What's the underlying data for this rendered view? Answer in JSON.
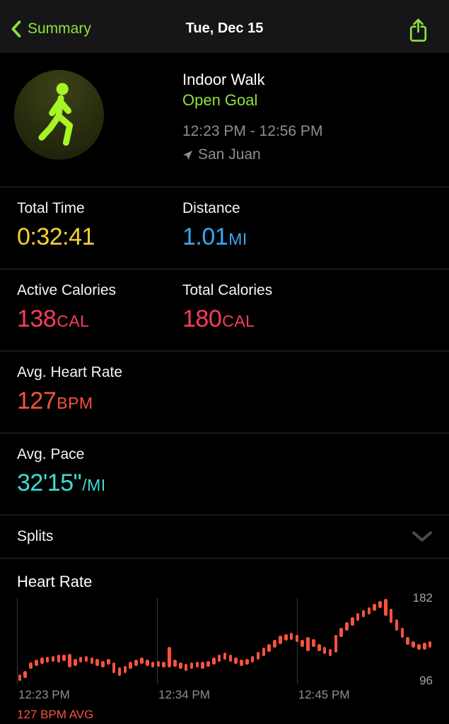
{
  "header": {
    "back_label": "Summary",
    "title": "Tue, Dec 15"
  },
  "icons": {
    "back": "chevron-left",
    "share": "share-square-arrow-up",
    "workout": "walking-person",
    "location": "navigation-arrow",
    "splits": "chevron-down"
  },
  "colors": {
    "green": "#8de33c",
    "lime": "#a6f426",
    "yellow": "#f6d32e",
    "blue": "#3aa7f4",
    "pink": "#fa3c5f",
    "red": "#f8523e",
    "cyan": "#40dcd4",
    "gray": "#8e8e93"
  },
  "workout": {
    "type": "Indoor Walk",
    "goal": "Open Goal",
    "time_range": "12:23 PM - 12:56 PM",
    "location": "San Juan"
  },
  "metrics": {
    "total_time": {
      "label": "Total Time",
      "value": "0:32:41",
      "unit": "",
      "color": "#f6d32e"
    },
    "distance": {
      "label": "Distance",
      "value": "1.01",
      "unit": "MI",
      "color": "#3aa7f4"
    },
    "active_calories": {
      "label": "Active Calories",
      "value": "138",
      "unit": "CAL",
      "color": "#fa3c5f"
    },
    "total_calories": {
      "label": "Total Calories",
      "value": "180",
      "unit": "CAL",
      "color": "#fa3c5f"
    },
    "avg_heart_rate": {
      "label": "Avg. Heart Rate",
      "value": "127",
      "unit": "BPM",
      "color": "#f8523e"
    },
    "avg_pace": {
      "label": "Avg. Pace",
      "value": "32'15\"",
      "unit": "/MI",
      "color": "#40dcd4"
    }
  },
  "splits": {
    "label": "Splits"
  },
  "chart_data": {
    "type": "bar",
    "subtype": "range-bar",
    "title": "Heart Rate",
    "series_name": "Heart Rate (BPM)",
    "ylim": [
      96,
      182
    ],
    "y_labels": {
      "max": "182",
      "min": "96"
    },
    "bar_color": "#f8523e",
    "grid": "vertical-only",
    "x_ticks": [
      {
        "label": "12:23 PM",
        "frac": 0
      },
      {
        "label": "12:34 PM",
        "frac": 0.337
      },
      {
        "label": "12:45 PM",
        "frac": 0.673
      }
    ],
    "avg_label": "127 BPM AVG",
    "bars": [
      [
        99,
        105
      ],
      [
        102,
        109
      ],
      [
        111,
        117
      ],
      [
        114,
        120
      ],
      [
        116,
        122
      ],
      [
        117,
        123
      ],
      [
        118,
        124
      ],
      [
        117,
        125
      ],
      [
        119,
        125
      ],
      [
        112,
        126
      ],
      [
        114,
        121
      ],
      [
        117,
        123
      ],
      [
        118,
        124
      ],
      [
        116,
        122
      ],
      [
        114,
        121
      ],
      [
        112,
        119
      ],
      [
        115,
        121
      ],
      [
        107,
        117
      ],
      [
        104,
        112
      ],
      [
        107,
        114
      ],
      [
        111,
        118
      ],
      [
        114,
        120
      ],
      [
        116,
        122
      ],
      [
        114,
        120
      ],
      [
        112,
        118
      ],
      [
        113,
        119
      ],
      [
        112,
        118
      ],
      [
        112,
        133
      ],
      [
        113,
        120
      ],
      [
        111,
        117
      ],
      [
        109,
        116
      ],
      [
        111,
        117
      ],
      [
        112,
        118
      ],
      [
        111,
        118
      ],
      [
        113,
        119
      ],
      [
        115,
        122
      ],
      [
        118,
        125
      ],
      [
        120,
        127
      ],
      [
        118,
        125
      ],
      [
        116,
        122
      ],
      [
        114,
        120
      ],
      [
        115,
        121
      ],
      [
        117,
        124
      ],
      [
        120,
        128
      ],
      [
        124,
        132
      ],
      [
        128,
        136
      ],
      [
        132,
        140
      ],
      [
        136,
        144
      ],
      [
        139,
        146
      ],
      [
        140,
        147
      ],
      [
        138,
        145
      ],
      [
        133,
        140
      ],
      [
        129,
        143
      ],
      [
        133,
        141
      ],
      [
        129,
        136
      ],
      [
        126,
        133
      ],
      [
        124,
        131
      ],
      [
        127,
        145
      ],
      [
        143,
        152
      ],
      [
        149,
        158
      ],
      [
        154,
        163
      ],
      [
        159,
        167
      ],
      [
        163,
        170
      ],
      [
        166,
        173
      ],
      [
        169,
        176
      ],
      [
        172,
        179
      ],
      [
        164,
        181
      ],
      [
        157,
        171
      ],
      [
        149,
        161
      ],
      [
        142,
        152
      ],
      [
        135,
        143
      ],
      [
        132,
        139
      ],
      [
        130,
        136
      ],
      [
        130,
        137
      ],
      [
        132,
        139
      ]
    ]
  }
}
